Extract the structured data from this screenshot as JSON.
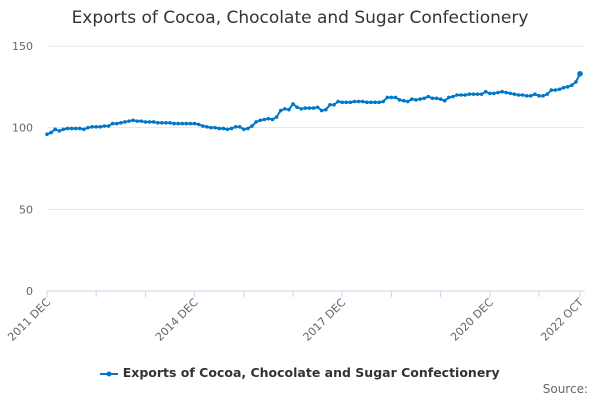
{
  "chart_data": {
    "type": "line",
    "title": "Exports of Cocoa, Chocolate and Sugar Confectionery",
    "xlabel": "",
    "ylabel": "",
    "ylim": [
      0,
      150
    ],
    "yticks": [
      0,
      50,
      100,
      150
    ],
    "grid": true,
    "legend_position": "bottom",
    "x_start": "2011 DEC",
    "x_end": "2022 OCT",
    "x_tick_labels": [
      {
        "label": "2011 DEC",
        "index": 0
      },
      {
        "label": "2014 DEC",
        "index": 36
      },
      {
        "label": "2017 DEC",
        "index": 72
      },
      {
        "label": "2020 DEC",
        "index": 108
      },
      {
        "label": "2022 OCT",
        "index": 130
      }
    ],
    "series": [
      {
        "name": "Exports of Cocoa, Chocolate and Sugar Confectionery",
        "color": "#0077c8",
        "values": [
          96,
          97,
          99,
          98,
          99,
          99.5,
          99.5,
          99.5,
          99.5,
          99,
          100,
          100.5,
          100.5,
          100.5,
          101,
          101,
          102.5,
          102.5,
          103,
          103.5,
          104,
          104.5,
          104,
          104,
          103.5,
          103.5,
          103.5,
          103,
          103,
          103,
          103,
          102.5,
          102.5,
          102.5,
          102.5,
          102.5,
          102.5,
          102,
          101,
          100.5,
          100,
          100,
          99.5,
          99.5,
          99,
          99.5,
          100.5,
          100.5,
          99,
          99.5,
          101,
          103.5,
          104.5,
          105,
          105.5,
          105,
          106.5,
          110.5,
          111.5,
          111,
          114.5,
          112.5,
          111.5,
          112,
          112,
          112,
          112.5,
          110.5,
          111,
          114,
          114,
          116,
          115.5,
          115.5,
          115.5,
          116,
          116,
          116,
          115.5,
          115.5,
          115.5,
          115.5,
          116,
          118.5,
          118.5,
          118.5,
          117,
          116.5,
          116,
          117.5,
          117,
          117.5,
          118,
          119,
          118,
          118,
          117.5,
          116.5,
          118.5,
          119,
          120,
          120,
          120,
          120.5,
          120.5,
          120.5,
          120.5,
          122,
          121,
          121,
          121.5,
          122,
          121.5,
          121,
          120.5,
          120,
          120,
          119.5,
          119.5,
          120.5,
          119.5,
          119.5,
          120.5,
          123,
          123,
          123.5,
          124.5,
          125,
          126,
          128,
          133
        ]
      }
    ]
  },
  "source_label": "Source:"
}
